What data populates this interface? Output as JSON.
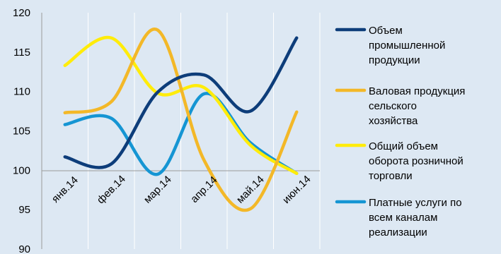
{
  "chart_data": {
    "type": "line",
    "title": "",
    "xlabel": "",
    "ylabel": "",
    "categories": [
      "янв.14",
      "фев.14",
      "мар.14",
      "апр.14",
      "май.14",
      "июн.14"
    ],
    "ylim": [
      90,
      120
    ],
    "yticks": [
      90,
      95,
      100,
      105,
      110,
      115,
      120
    ],
    "grid": "vertical-only",
    "legend_position": "right",
    "series": [
      {
        "name": "Объем промышленной продукции",
        "legend_lines": [
          "Объем",
          "промышленной",
          "продукции"
        ],
        "color": "#0d3d7a",
        "values": [
          101.7,
          100.8,
          109.9,
          112.1,
          107.5,
          116.8
        ]
      },
      {
        "name": "Валовая продукция сельского хозяйства",
        "legend_lines": [
          "Валовая продукция",
          "сельского",
          "хозяйства"
        ],
        "color": "#f3b828",
        "values": [
          107.3,
          108.7,
          117.8,
          101.3,
          95.1,
          107.4
        ]
      },
      {
        "name": "Общий объем оборота розничной торговли",
        "legend_lines": [
          "Общий объем",
          "оборота розничной",
          "торговли"
        ],
        "color": "#ffec0a",
        "values": [
          113.3,
          116.8,
          109.8,
          110.5,
          103.2,
          99.6
        ]
      },
      {
        "name": "Платные услуги по всем каналам реализации",
        "legend_lines": [
          "Платные услуги по",
          "всем каналам",
          "реализации"
        ],
        "color": "#1595d3",
        "values": [
          105.8,
          106.6,
          99.5,
          109.7,
          103.5,
          99.6
        ]
      }
    ]
  }
}
